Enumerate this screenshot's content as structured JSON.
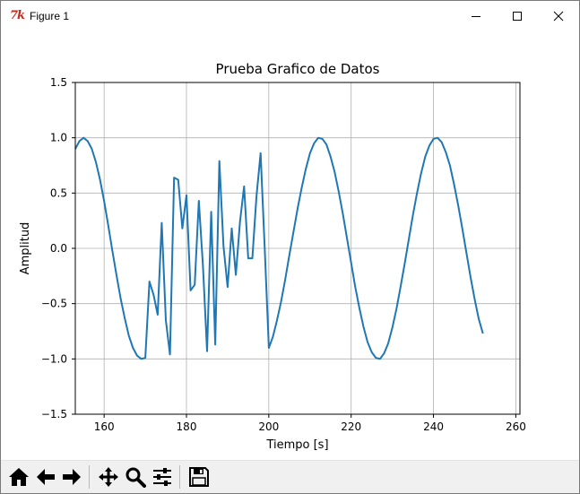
{
  "window": {
    "title": "Figure 1",
    "app_icon_text": "7k",
    "controls": [
      "minimize",
      "maximize",
      "close"
    ]
  },
  "toolbar": {
    "buttons": [
      {
        "name": "home",
        "icon": "home-icon"
      },
      {
        "name": "back",
        "icon": "arrow-left-icon"
      },
      {
        "name": "forward",
        "icon": "arrow-right-icon"
      },
      {
        "name": "pan",
        "icon": "move-icon"
      },
      {
        "name": "zoom",
        "icon": "magnifier-icon"
      },
      {
        "name": "configure-subplots",
        "icon": "sliders-icon"
      },
      {
        "name": "save",
        "icon": "floppy-disk-icon"
      }
    ]
  },
  "colors": {
    "line": "#1f77b4",
    "grid": "#b0b0b0",
    "axes": "#000000"
  },
  "chart_data": {
    "type": "line",
    "title": "Prueba Grafico de Datos",
    "xlabel": "Tiempo [s]",
    "ylabel": "Amplitud",
    "xlim": [
      153,
      261
    ],
    "ylim": [
      -1.5,
      1.5
    ],
    "xticks": [
      160,
      180,
      200,
      220,
      240,
      260
    ],
    "yticks": [
      -1.5,
      -1.0,
      -0.5,
      0.0,
      0.5,
      1.0,
      1.5
    ],
    "ytick_labels": [
      "−1.5",
      "−1.0",
      "−0.5",
      "0.0",
      "0.5",
      "1.0",
      "1.5"
    ],
    "grid": true,
    "legend": "none",
    "series": [
      {
        "color": "#1f77b4",
        "x": [
          153,
          154,
          155,
          156,
          157,
          158,
          159,
          160,
          161,
          162,
          163,
          164,
          165,
          166,
          167,
          168,
          169,
          170,
          171,
          172,
          173,
          174,
          175,
          176,
          177,
          178,
          179,
          180,
          181,
          182,
          183,
          184,
          185,
          186,
          187,
          188,
          189,
          190,
          191,
          192,
          193,
          194,
          195,
          196,
          197,
          198,
          199,
          200,
          201,
          202,
          203,
          204,
          205,
          206,
          207,
          208,
          209,
          210,
          211,
          212,
          213,
          214,
          215,
          216,
          217,
          218,
          219,
          220,
          221,
          222,
          223,
          224,
          225,
          226,
          227,
          228,
          229,
          230,
          231,
          232,
          233,
          234,
          235,
          236,
          237,
          238,
          239,
          240,
          241,
          242,
          243,
          244,
          245,
          246,
          247,
          248,
          249,
          250,
          251,
          252
        ],
        "y": [
          0.9,
          0.97,
          1.0,
          0.97,
          0.9,
          0.78,
          0.62,
          0.43,
          0.21,
          -0.02,
          -0.24,
          -0.45,
          -0.63,
          -0.79,
          -0.9,
          -0.97,
          -1.0,
          -0.99,
          -0.3,
          -0.42,
          -0.6,
          0.23,
          -0.65,
          -0.96,
          0.64,
          0.62,
          0.18,
          0.48,
          -0.38,
          -0.33,
          0.43,
          -0.16,
          -0.93,
          0.33,
          -0.87,
          0.79,
          0.02,
          -0.35,
          0.18,
          -0.24,
          0.24,
          0.56,
          -0.09,
          -0.09,
          0.47,
          0.86,
          0.0,
          -0.9,
          -0.8,
          -0.65,
          -0.48,
          -0.28,
          -0.06,
          0.15,
          0.36,
          0.55,
          0.72,
          0.86,
          0.95,
          1.0,
          0.99,
          0.94,
          0.83,
          0.69,
          0.51,
          0.31,
          0.09,
          -0.13,
          -0.35,
          -0.54,
          -0.71,
          -0.85,
          -0.94,
          -0.99,
          -1.0,
          -0.95,
          -0.86,
          -0.72,
          -0.55,
          -0.35,
          -0.14,
          0.08,
          0.3,
          0.5,
          0.68,
          0.83,
          0.93,
          0.99,
          1.0,
          0.96,
          0.87,
          0.75,
          0.58,
          0.39,
          0.18,
          -0.04,
          -0.26,
          -0.46,
          -0.64,
          -0.77
        ]
      }
    ]
  }
}
